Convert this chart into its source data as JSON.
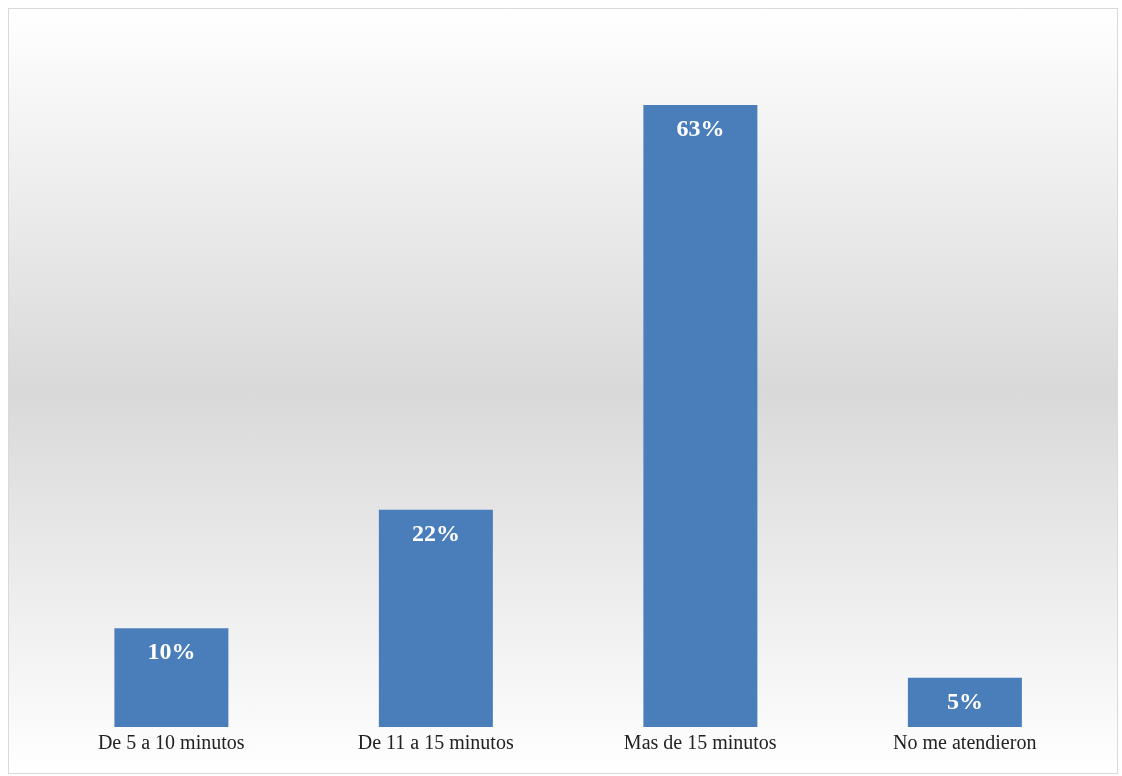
{
  "chart_data": {
    "type": "bar",
    "categories": [
      "De 5 a 10 minutos",
      "De 11 a 15 minutos",
      "Mas de 15 minutos",
      "No me atendieron"
    ],
    "values": [
      10,
      22,
      63,
      5
    ],
    "value_labels": [
      "10%",
      "22%",
      "63%",
      "5%"
    ],
    "color": "#4a7ebb"
  }
}
